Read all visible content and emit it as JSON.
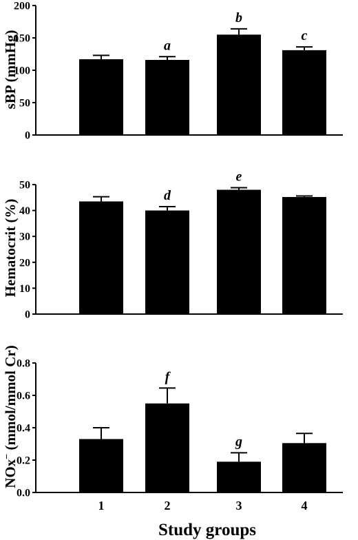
{
  "xlabel": "Study groups",
  "colors": {
    "bar": "#000000",
    "axis": "#000000",
    "background": "#ffffff"
  },
  "chart_data": [
    {
      "type": "bar",
      "ylabel": "sBP (mmHg)",
      "categories": [
        "1",
        "2",
        "3",
        "4"
      ],
      "values": [
        117,
        116,
        155,
        131
      ],
      "errors": [
        6,
        5,
        9,
        5
      ],
      "annotations": [
        "",
        "a",
        "b",
        "c"
      ],
      "ylim": [
        0,
        200
      ],
      "yticks": [
        "0",
        "50",
        "100",
        "150",
        "200"
      ],
      "grid": false
    },
    {
      "type": "bar",
      "ylabel": "Hematocrit (%)",
      "categories": [
        "1",
        "2",
        "3",
        "4"
      ],
      "values": [
        43.5,
        40,
        48,
        45.2
      ],
      "errors": [
        1.8,
        1.5,
        0.8,
        0.4
      ],
      "annotations": [
        "",
        "d",
        "e",
        ""
      ],
      "ylim": [
        0,
        50
      ],
      "yticks": [
        "0",
        "10",
        "20",
        "30",
        "40",
        "50"
      ],
      "grid": false
    },
    {
      "type": "bar",
      "ylabel_main": "NOx",
      "ylabel_super": "−",
      "ylabel_rest": " (mmol/mmol Cr)",
      "categories": [
        "1",
        "2",
        "3",
        "4"
      ],
      "values": [
        0.33,
        0.55,
        0.19,
        0.305
      ],
      "errors": [
        0.07,
        0.095,
        0.055,
        0.06
      ],
      "annotations": [
        "",
        "f",
        "g",
        ""
      ],
      "ylim": [
        0,
        0.8
      ],
      "yticks": [
        "0.0",
        "0.2",
        "0.4",
        "0.6",
        "0.8"
      ],
      "xticks": [
        "1",
        "2",
        "3",
        "4"
      ],
      "grid": false
    }
  ]
}
